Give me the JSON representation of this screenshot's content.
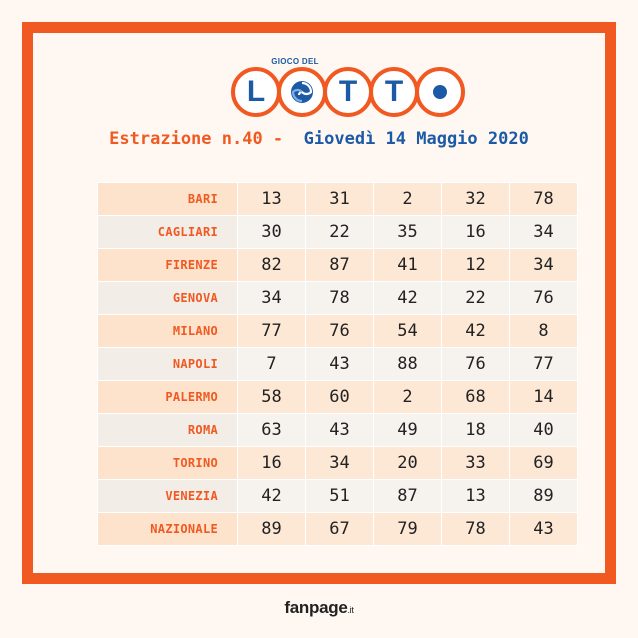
{
  "logo": {
    "top_text": "GIOCO DEL",
    "letters": [
      "L",
      "O",
      "T",
      "T",
      "O"
    ],
    "colors": {
      "orange": "#f05a22",
      "blue": "#1d5aa6"
    }
  },
  "heading": {
    "left": "Estrazione n.40 -",
    "right": "Giovedì 14 Maggio 2020"
  },
  "results": [
    {
      "city": "BARI",
      "numbers": [
        "13",
        "31",
        "2",
        "32",
        "78"
      ]
    },
    {
      "city": "CAGLIARI",
      "numbers": [
        "30",
        "22",
        "35",
        "16",
        "34"
      ]
    },
    {
      "city": "FIRENZE",
      "numbers": [
        "82",
        "87",
        "41",
        "12",
        "34"
      ]
    },
    {
      "city": "GENOVA",
      "numbers": [
        "34",
        "78",
        "42",
        "22",
        "76"
      ]
    },
    {
      "city": "MILANO",
      "numbers": [
        "77",
        "76",
        "54",
        "42",
        "8"
      ]
    },
    {
      "city": "NAPOLI",
      "numbers": [
        "7",
        "43",
        "88",
        "76",
        "77"
      ]
    },
    {
      "city": "PALERMO",
      "numbers": [
        "58",
        "60",
        "2",
        "68",
        "14"
      ]
    },
    {
      "city": "ROMA",
      "numbers": [
        "63",
        "43",
        "49",
        "18",
        "40"
      ]
    },
    {
      "city": "TORINO",
      "numbers": [
        "16",
        "34",
        "20",
        "33",
        "69"
      ]
    },
    {
      "city": "VENEZIA",
      "numbers": [
        "42",
        "51",
        "87",
        "13",
        "89"
      ]
    },
    {
      "city": "NAZIONALE",
      "numbers": [
        "89",
        "67",
        "79",
        "78",
        "43"
      ]
    }
  ],
  "brand": {
    "name": "fanpage",
    "tld": ".it"
  }
}
